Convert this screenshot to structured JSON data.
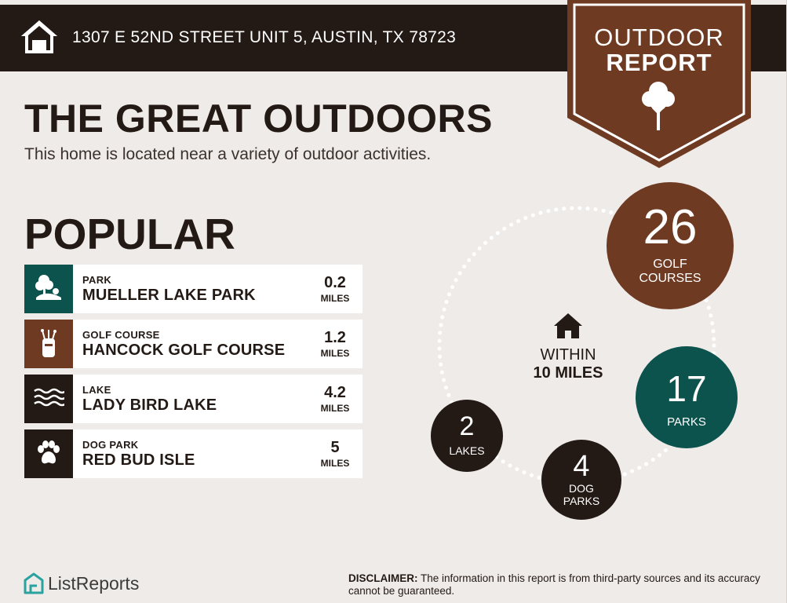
{
  "header": {
    "address": "1307 E 52ND STREET UNIT 5, AUSTIN, TX 78723",
    "home_icon": "house-icon",
    "badge_line1": "OUTDOOR",
    "badge_line2": "REPORT",
    "badge_icon": "tree-icon"
  },
  "main": {
    "title": "THE GREAT OUTDOORS",
    "subtitle": "This home is located near a variety of outdoor activities."
  },
  "popular": {
    "heading": "POPULAR",
    "items": [
      {
        "type": "PARK",
        "name": "MUELLER LAKE PARK",
        "distance": "0.2",
        "unit": "MILES",
        "icon": "park-tree-icon",
        "color": "#0c524d"
      },
      {
        "type": "GOLF COURSE",
        "name": "HANCOCK GOLF COURSE",
        "distance": "1.2",
        "unit": "MILES",
        "icon": "golf-bag-icon",
        "color": "#6e3a22"
      },
      {
        "type": "LAKE",
        "name": "LADY BIRD LAKE",
        "distance": "4.2",
        "unit": "MILES",
        "icon": "water-waves-icon",
        "color": "#231a15"
      },
      {
        "type": "DOG PARK",
        "name": "RED BUD ISLE",
        "distance": "5",
        "unit": "MILES",
        "icon": "paw-print-icon",
        "color": "#231a15"
      }
    ]
  },
  "radius": {
    "within_line1": "WITHIN",
    "within_line2": "10 MILES",
    "center_icon": "house-icon",
    "counts": {
      "golf": {
        "value": "26",
        "label_line1": "GOLF",
        "label_line2": "COURSES",
        "color": "#6e3a22"
      },
      "parks": {
        "value": "17",
        "label_line1": "PARKS",
        "color": "#0c524d"
      },
      "lakes": {
        "value": "2",
        "label_line1": "LAKES",
        "color": "#231a15"
      },
      "dog": {
        "value": "4",
        "label_line1": "DOG",
        "label_line2": "PARKS",
        "color": "#231a15"
      }
    }
  },
  "footer": {
    "brand": "ListReports",
    "brand_icon": "listreports-logo-icon",
    "disclaimer_label": "DISCLAIMER:",
    "disclaimer_text": " The information in this report is from third-party sources and its accuracy cannot be guaranteed."
  },
  "colors": {
    "dark": "#231a15",
    "brown": "#6e3a22",
    "teal": "#0c524d",
    "background": "#efebe8"
  }
}
